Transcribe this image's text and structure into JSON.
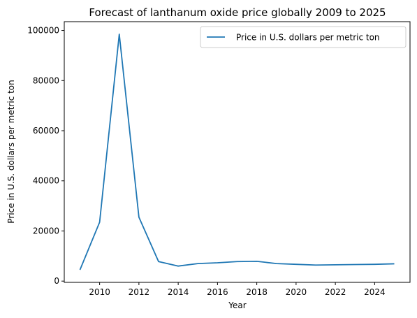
{
  "chart_data": {
    "type": "line",
    "title": "Forecast of lanthanum oxide price globally 2009 to 2025",
    "xlabel": "Year",
    "ylabel": "Price in U.S. dollars per metric ton",
    "xlim": [
      2008.2,
      2025.8
    ],
    "ylim": [
      -500,
      103500
    ],
    "xticks": [
      2010,
      2012,
      2014,
      2016,
      2018,
      2020,
      2022,
      2024
    ],
    "yticks": [
      0,
      20000,
      40000,
      60000,
      80000,
      100000
    ],
    "grid": false,
    "legend_position": "top-right",
    "series": [
      {
        "name": "Price in U.S. dollars per metric ton",
        "color": "#1f77b4",
        "x": [
          2009,
          2010,
          2011,
          2012,
          2013,
          2014,
          2015,
          2016,
          2017,
          2018,
          2019,
          2020,
          2021,
          2022,
          2023,
          2024,
          2025
        ],
        "y": [
          4500,
          23500,
          98500,
          25500,
          7800,
          6000,
          7000,
          7300,
          7800,
          7900,
          7000,
          6700,
          6400,
          6500,
          6600,
          6700,
          6900
        ]
      }
    ]
  }
}
